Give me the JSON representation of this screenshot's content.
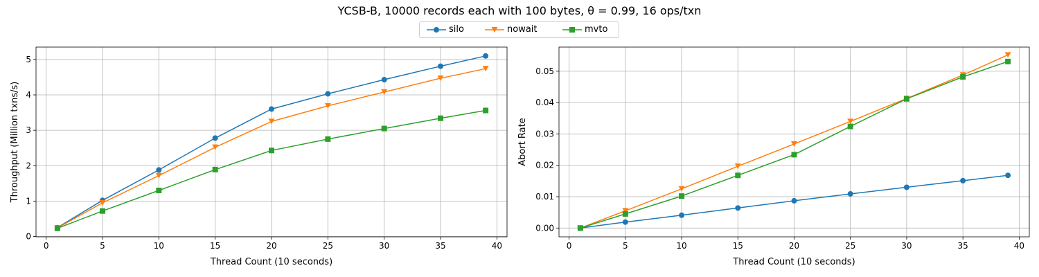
{
  "figure_title": "YCSB-B, 10000 records each with 100 bytes, θ = 0.99, 16 ops/txn",
  "legend": {
    "placement": "top-center",
    "entries": [
      {
        "name": "silo",
        "color": "#1f77b4",
        "marker": "circle"
      },
      {
        "name": "nowait",
        "color": "#ff7f0e",
        "marker": "triangle-down"
      },
      {
        "name": "mvto",
        "color": "#2ca02c",
        "marker": "square"
      }
    ]
  },
  "chart_data": [
    {
      "type": "line",
      "xlabel": "Thread Count (10 seconds)",
      "ylabel": "Throughput (Million txns/s)",
      "xlim": [
        -0.9,
        40.9
      ],
      "ylim": [
        -0.01,
        5.35
      ],
      "xticks": [
        0,
        5,
        10,
        15,
        20,
        25,
        30,
        35,
        40
      ],
      "yticks": [
        0,
        1,
        2,
        3,
        4,
        5
      ],
      "ytick_labels": [
        "0",
        "1",
        "2",
        "3",
        "4",
        "5"
      ],
      "grid": true,
      "x": [
        1,
        5,
        10,
        15,
        20,
        25,
        30,
        35,
        39
      ],
      "series": [
        {
          "name": "silo",
          "color": "#1f77b4",
          "marker": "circle",
          "values": [
            0.25,
            1.02,
            1.88,
            2.78,
            3.6,
            4.03,
            4.43,
            4.81,
            5.1
          ]
        },
        {
          "name": "nowait",
          "color": "#ff7f0e",
          "marker": "triangle-down",
          "values": [
            0.24,
            0.95,
            1.72,
            2.52,
            3.25,
            3.69,
            4.08,
            4.47,
            4.74
          ]
        },
        {
          "name": "mvto",
          "color": "#2ca02c",
          "marker": "square",
          "values": [
            0.23,
            0.72,
            1.3,
            1.89,
            2.43,
            2.75,
            3.05,
            3.34,
            3.56
          ]
        }
      ]
    },
    {
      "type": "line",
      "xlabel": "Thread Count (10 seconds)",
      "ylabel": "Abort Rate",
      "xlim": [
        -0.9,
        40.9
      ],
      "ylim": [
        -0.0028,
        0.0577
      ],
      "xticks": [
        0,
        5,
        10,
        15,
        20,
        25,
        30,
        35,
        40
      ],
      "yticks": [
        0,
        0.01,
        0.02,
        0.03,
        0.04,
        0.05
      ],
      "ytick_labels": [
        "0.00",
        "0.01",
        "0.02",
        "0.03",
        "0.04",
        "0.05"
      ],
      "grid": true,
      "x": [
        1,
        5,
        10,
        15,
        20,
        25,
        30,
        35,
        39
      ],
      "series": [
        {
          "name": "silo",
          "color": "#1f77b4",
          "marker": "circle",
          "values": [
            0.0,
            0.0019,
            0.0041,
            0.0064,
            0.0087,
            0.0109,
            0.013,
            0.0151,
            0.0168
          ]
        },
        {
          "name": "nowait",
          "color": "#ff7f0e",
          "marker": "triangle-down",
          "values": [
            0.0,
            0.0055,
            0.0125,
            0.0197,
            0.0268,
            0.034,
            0.0413,
            0.0488,
            0.0552
          ]
        },
        {
          "name": "mvto",
          "color": "#2ca02c",
          "marker": "square",
          "values": [
            0.0,
            0.0045,
            0.0102,
            0.0168,
            0.0234,
            0.0324,
            0.0412,
            0.0482,
            0.0531
          ]
        }
      ]
    }
  ]
}
